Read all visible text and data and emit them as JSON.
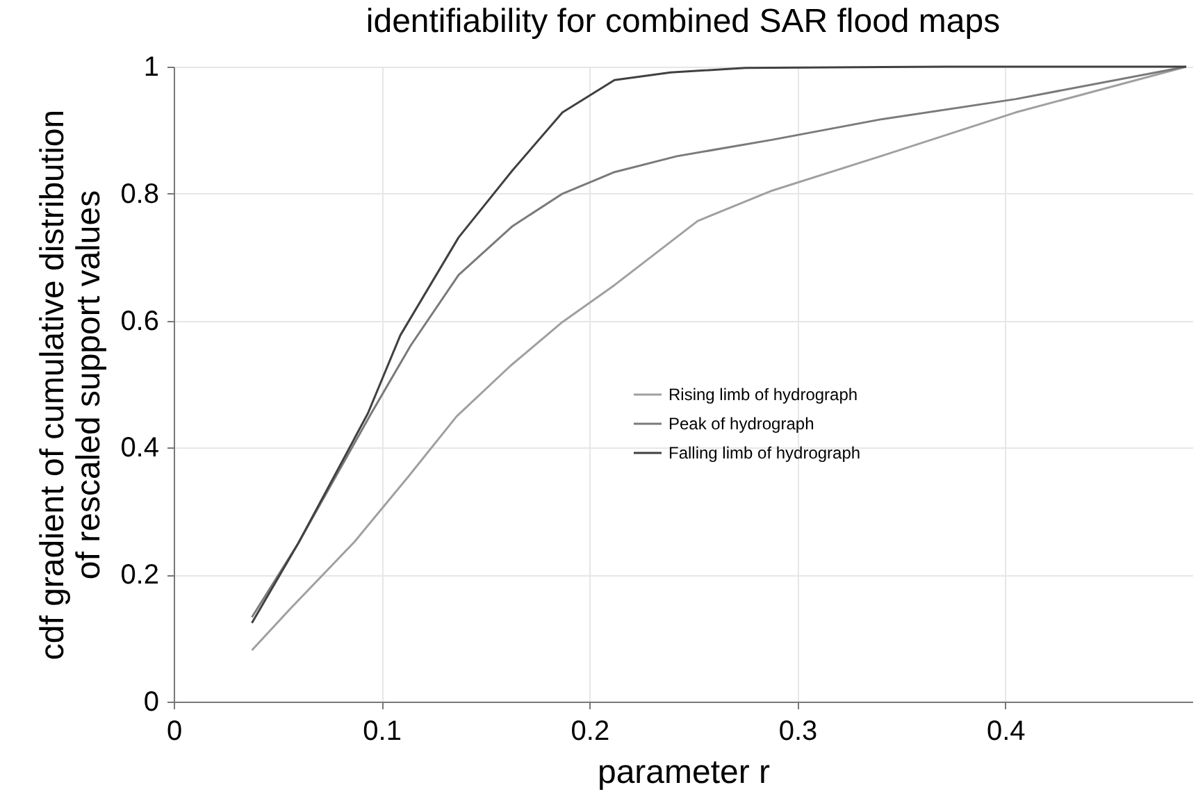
{
  "chart_data": {
    "type": "line",
    "title": "identifiability for combined SAR flood maps",
    "xlabel": "parameter r",
    "ylabel": "cdf gradient of cumulative distribution\nof rescaled support values",
    "xlim": [
      0,
      0.49
    ],
    "xticks": [
      0,
      0.1,
      0.2,
      0.3,
      0.4
    ],
    "ylim": [
      0,
      1
    ],
    "yticks": [
      0,
      0.2,
      0.4,
      0.6,
      0.8,
      1
    ],
    "grid": true,
    "legend": "center",
    "line_style": "solid",
    "marker": "none",
    "series": [
      {
        "name": "Rising limb of hydrograph",
        "color": "#a0a0a0",
        "x": [
          0.0376,
          0.056,
          0.087,
          0.113,
          0.136,
          0.162,
          0.187,
          0.212,
          0.252,
          0.288,
          0.34,
          0.405,
          0.487
        ],
        "values": [
          0.081,
          0.146,
          0.252,
          0.355,
          0.449,
          0.529,
          0.598,
          0.656,
          0.757,
          0.805,
          0.859,
          0.928,
          1.0
        ]
      },
      {
        "name": "Peak of hydrograph",
        "color": "#7a7a7a",
        "x": [
          0.0376,
          0.06,
          0.095,
          0.114,
          0.137,
          0.163,
          0.187,
          0.212,
          0.242,
          0.288,
          0.34,
          0.405,
          0.487
        ],
        "values": [
          0.133,
          0.25,
          0.454,
          0.561,
          0.672,
          0.749,
          0.8,
          0.834,
          0.859,
          0.885,
          0.917,
          0.949,
          1.0
        ]
      },
      {
        "name": "Falling limb of hydrograph",
        "color": "#404040",
        "x": [
          0.0376,
          0.06,
          0.0934,
          0.109,
          0.137,
          0.163,
          0.187,
          0.212,
          0.239,
          0.275,
          0.372,
          0.487
        ],
        "values": [
          0.124,
          0.25,
          0.454,
          0.577,
          0.731,
          0.837,
          0.928,
          0.979,
          0.991,
          0.998,
          1.0,
          1.0
        ]
      }
    ]
  }
}
